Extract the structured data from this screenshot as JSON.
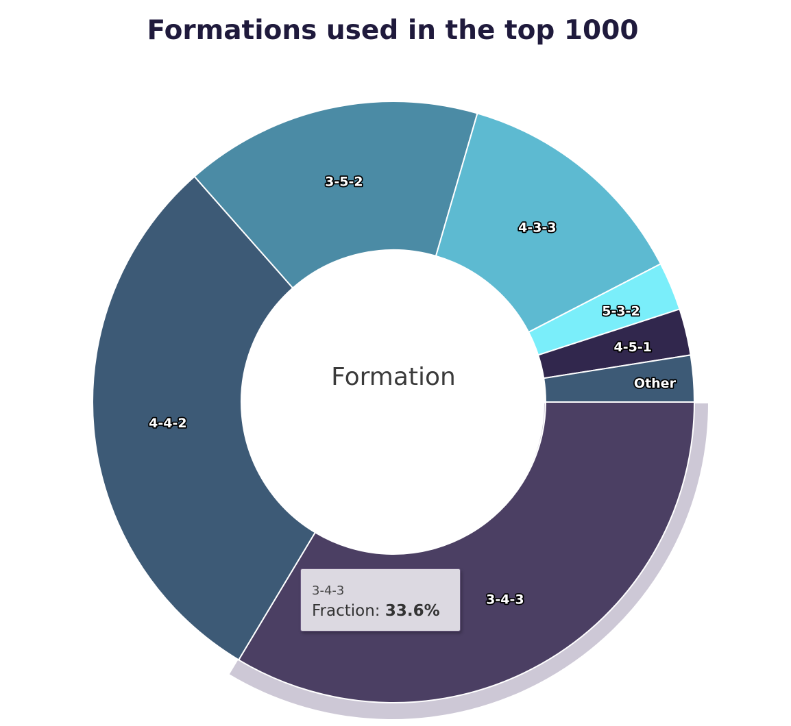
{
  "chart_data": {
    "type": "pie",
    "variant": "donut",
    "title": "Formations used in the top 1000",
    "center_label": "Formation",
    "categories": [
      "3-4-3",
      "4-4-2",
      "3-5-2",
      "4-3-3",
      "5-3-2",
      "4-5-1",
      "Other"
    ],
    "values": [
      33.6,
      29.9,
      16.0,
      12.9,
      2.6,
      2.5,
      2.5
    ],
    "unit": "%",
    "colors": [
      "#4b3f63",
      "#3d5a76",
      "#4b8ba5",
      "#5dbad1",
      "#7aeefa",
      "#31274d",
      "#3d5a76"
    ],
    "highlighted": "3-4-3",
    "legend": "none",
    "tooltip": {
      "category": "3-4-3",
      "label": "Fraction:",
      "value": "33.6%"
    }
  }
}
